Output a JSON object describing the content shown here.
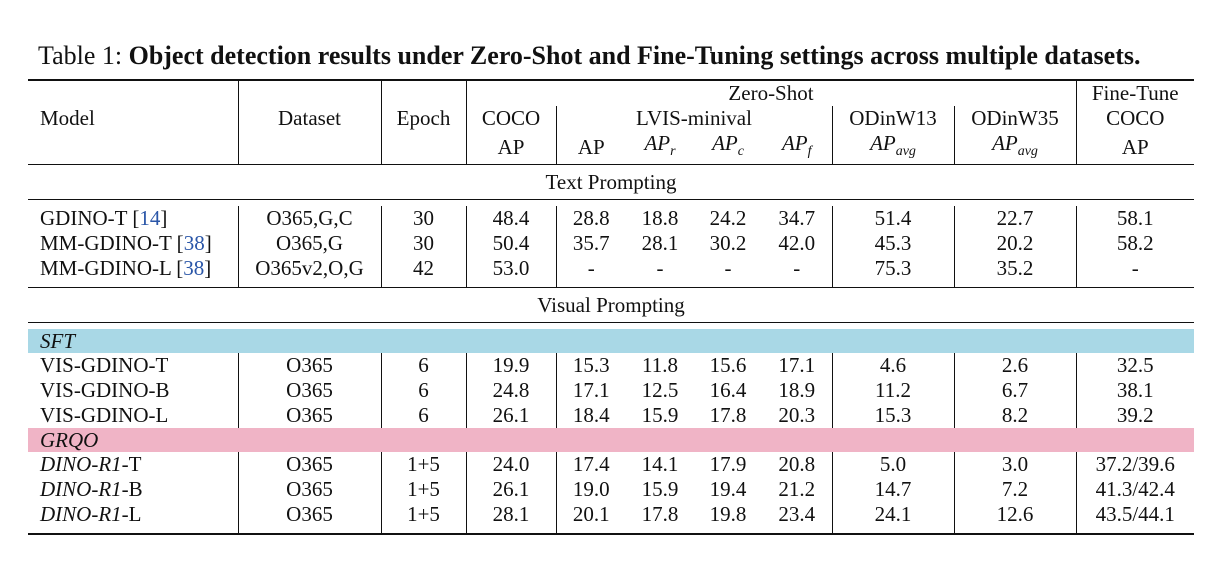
{
  "caption": {
    "prefix": "Table 1:",
    "bold": "Object detection results under Zero-Shot and Fine-Tuning settings across multiple datasets."
  },
  "header": {
    "zero_shot": "Zero-Shot",
    "fine_tune": "Fine-Tune",
    "model": "Model",
    "dataset": "Dataset",
    "epoch": "Epoch",
    "coco": "COCO",
    "lvis": "LVIS-minival",
    "odinw13": "ODinW13",
    "odinw35": "ODinW35",
    "ft_coco": "COCO",
    "ap": "AP",
    "ap_var": "AP",
    "r": "r",
    "c": "c",
    "f": "f",
    "avg": "avg"
  },
  "sections": {
    "text": "Text Prompting",
    "visual": "Visual Prompting",
    "sft": "SFT",
    "grqo": "GRQO"
  },
  "text_rows": [
    {
      "model": "GDINO-T",
      "cite": "14",
      "dataset": "O365,G,C",
      "epoch": "30",
      "coco": "48.4",
      "ap": "28.8",
      "apr": "18.8",
      "apc": "24.2",
      "apf": "34.7",
      "o13": "51.4",
      "o35": "22.7",
      "ft": "58.1"
    },
    {
      "model": "MM-GDINO-T",
      "cite": "38",
      "dataset": "O365,G",
      "epoch": "30",
      "coco": "50.4",
      "ap": "35.7",
      "apr": "28.1",
      "apc": "30.2",
      "apf": "42.0",
      "o13": "45.3",
      "o35": "20.2",
      "ft": "58.2"
    },
    {
      "model": "MM-GDINO-L",
      "cite": "38",
      "dataset": "O365v2,O,G",
      "epoch": "42",
      "coco": "53.0",
      "ap": "-",
      "apr": "-",
      "apc": "-",
      "apf": "-",
      "o13": "75.3",
      "o35": "35.2",
      "ft": "-"
    }
  ],
  "sft_rows": [
    {
      "model": "VIS-GDINO-T",
      "dataset": "O365",
      "epoch": "6",
      "coco": "19.9",
      "ap": "15.3",
      "apr": "11.8",
      "apc": "15.6",
      "apf": "17.1",
      "o13": "4.6",
      "o35": "2.6",
      "ft": "32.5"
    },
    {
      "model": "VIS-GDINO-B",
      "dataset": "O365",
      "epoch": "6",
      "coco": "24.8",
      "ap": "17.1",
      "apr": "12.5",
      "apc": "16.4",
      "apf": "18.9",
      "o13": "11.2",
      "o35": "6.7",
      "ft": "38.1"
    },
    {
      "model": "VIS-GDINO-L",
      "dataset": "O365",
      "epoch": "6",
      "coco": "26.1",
      "ap": "18.4",
      "apr": "15.9",
      "apc": "17.8",
      "apf": "20.3",
      "o13": "15.3",
      "o35": "8.2",
      "ft": "39.2"
    }
  ],
  "grqo_rows": [
    {
      "model_it": "DINO-R1",
      "suffix": "-T",
      "dataset": "O365",
      "epoch": "1+5",
      "coco": "24.0",
      "ap": "17.4",
      "apr": "14.1",
      "apc": "17.9",
      "apf": "20.8",
      "o13": "5.0",
      "o35": "3.0",
      "ft": "37.2/39.6"
    },
    {
      "model_it": "DINO-R1",
      "suffix": "-B",
      "dataset": "O365",
      "epoch": "1+5",
      "coco": "26.1",
      "ap": "19.0",
      "apr": "15.9",
      "apc": "19.4",
      "apf": "21.2",
      "o13": "14.7",
      "o35": "7.2",
      "ft": "41.3/42.4"
    },
    {
      "model_it": "DINO-R1",
      "suffix": "-L",
      "dataset": "O365",
      "epoch": "1+5",
      "coco": "28.1",
      "ap": "20.1",
      "apr": "17.8",
      "apc": "19.8",
      "apf": "23.4",
      "o13": "24.1",
      "o35": "12.6",
      "ft": "43.5/44.1"
    }
  ]
}
